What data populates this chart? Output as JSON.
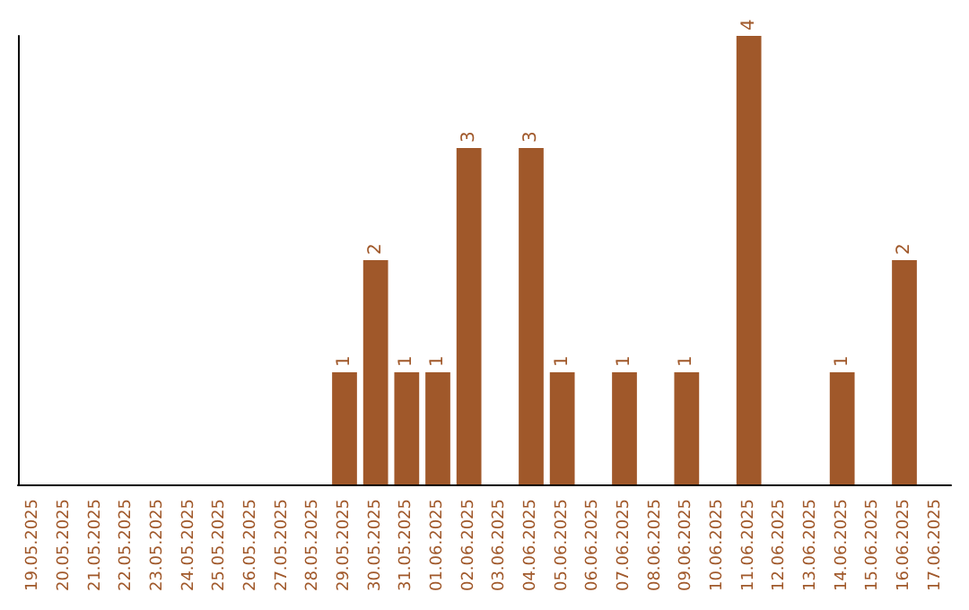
{
  "chart_data": {
    "type": "bar",
    "categories": [
      "19.05.2025",
      "20.05.2025",
      "21.05.2025",
      "22.05.2025",
      "23.05.2025",
      "24.05.2025",
      "25.05.2025",
      "26.05.2025",
      "27.05.2025",
      "28.05.2025",
      "29.05.2025",
      "30.05.2025",
      "31.05.2025",
      "01.06.2025",
      "02.06.2025",
      "03.06.2025",
      "04.06.2025",
      "05.06.2025",
      "06.06.2025",
      "07.06.2025",
      "08.06.2025",
      "09.06.2025",
      "10.06.2025",
      "11.06.2025",
      "12.06.2025",
      "13.06.2025",
      "14.06.2025",
      "15.06.2025",
      "16.06.2025",
      "17.06.2025"
    ],
    "values": [
      0,
      0,
      0,
      0,
      0,
      0,
      0,
      0,
      0,
      0,
      1,
      2,
      1,
      1,
      3,
      0,
      3,
      1,
      0,
      1,
      0,
      1,
      0,
      4,
      0,
      0,
      1,
      0,
      2,
      0
    ],
    "value_labels": [
      null,
      null,
      null,
      null,
      null,
      null,
      null,
      null,
      null,
      null,
      "1",
      "2",
      "1",
      "1",
      "3",
      null,
      "3",
      "1",
      null,
      "1",
      null,
      "1",
      null,
      "4",
      null,
      null,
      "1",
      null,
      "2",
      null
    ],
    "color": "#a0582a",
    "tick_labels": "x"
  }
}
